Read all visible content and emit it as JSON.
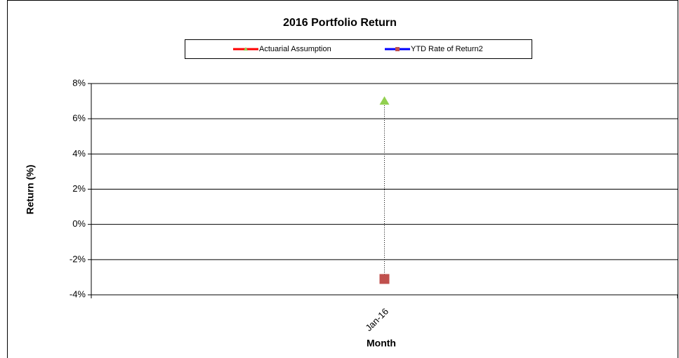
{
  "chart_data": {
    "type": "line",
    "title": "2016 Portfolio Return",
    "categories": [
      "Jan-16"
    ],
    "series": [
      {
        "name": "Actuarial Assumption",
        "color": "#ff0000",
        "marker": "triangle",
        "marker_color": "#92d050",
        "values": [
          7
        ]
      },
      {
        "name": "YTD Rate of Return2",
        "color": "#0000ff",
        "marker": "square",
        "marker_color": "#c0504d",
        "values": [
          -3.1
        ]
      }
    ],
    "ylabel": "Return (%)",
    "xlabel": "Month",
    "ylim": [
      -4,
      8
    ],
    "yticks": [
      {
        "value": -4,
        "label": "-4%"
      },
      {
        "value": -2,
        "label": "-2%"
      },
      {
        "value": 0,
        "label": "0%"
      },
      {
        "value": 2,
        "label": "2%"
      },
      {
        "value": 4,
        "label": "4%"
      },
      {
        "value": 6,
        "label": "6%"
      },
      {
        "value": 8,
        "label": "8%"
      }
    ],
    "grid": true,
    "legend": "top"
  }
}
